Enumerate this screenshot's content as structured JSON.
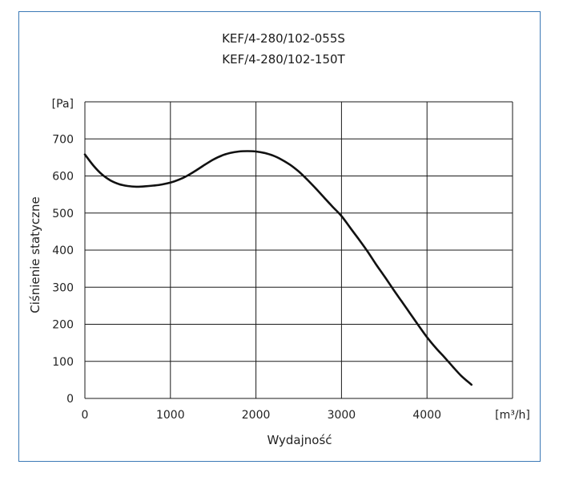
{
  "colors": {
    "frame_border": "#3c79b6",
    "grid": "#1a1a1a",
    "curve": "#111111",
    "text": "#222222",
    "background": "#ffffff"
  },
  "chart_data": {
    "type": "line",
    "title_lines": [
      "KEF/4-280/102-055S",
      "KEF/4-280/102-150T"
    ],
    "xlabel": "Wydajność",
    "ylabel": "Ciśnienie statyczne",
    "x_unit": "[m³/h]",
    "y_unit": "[Pa]",
    "xlim": [
      0,
      5000
    ],
    "ylim": [
      0,
      800
    ],
    "x_ticks": [
      0,
      1000,
      2000,
      3000,
      4000
    ],
    "y_ticks": [
      0,
      100,
      200,
      300,
      400,
      500,
      600,
      700
    ],
    "grid": true,
    "legend": "none",
    "series": [
      {
        "x": [
          0,
          100,
          200,
          300,
          400,
          500,
          600,
          700,
          800,
          900,
          1000,
          1100,
          1200,
          1300,
          1400,
          1500,
          1600,
          1700,
          1800,
          1900,
          2000,
          2100,
          2200,
          2300,
          2400,
          2500,
          2600,
          2700,
          2800,
          2900,
          3000,
          3100,
          3200,
          3300,
          3400,
          3500,
          3600,
          3700,
          3800,
          3900,
          4000,
          4100,
          4200,
          4300,
          4400,
          4520
        ],
        "y": [
          658,
          628,
          604,
          588,
          578,
          573,
          571,
          572,
          574,
          577,
          582,
          590,
          601,
          615,
          630,
          644,
          655,
          662,
          666,
          667,
          666,
          662,
          655,
          644,
          630,
          612,
          590,
          566,
          541,
          516,
          492,
          461,
          430,
          398,
          363,
          330,
          296,
          263,
          230,
          197,
          165,
          137,
          112,
          86,
          61,
          37
        ]
      }
    ]
  }
}
